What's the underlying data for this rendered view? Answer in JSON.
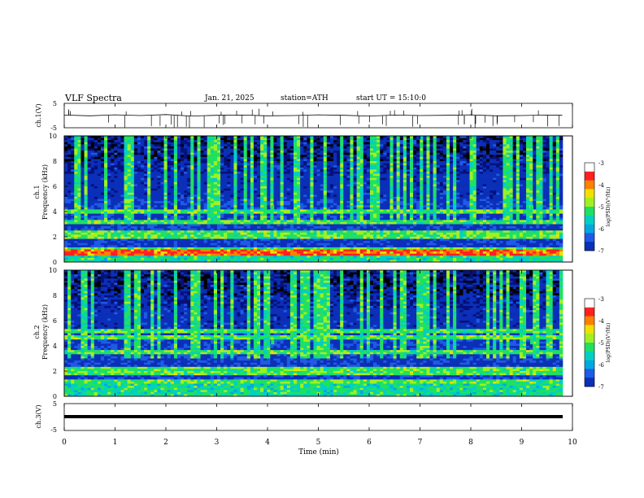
{
  "header": {
    "title": "VLF Spectra",
    "date": "Jan. 21, 2025",
    "station": "station=ATH",
    "start": "start UT = 15:10:0"
  },
  "chart_data": [
    {
      "type": "line",
      "panel": "ch1-waveform",
      "ylabel": "ch.1(V)",
      "ylim": [
        -5,
        5
      ],
      "yticks": [
        "5",
        "-5"
      ],
      "x": [
        0,
        0.5,
        1,
        1.5,
        2,
        2.5,
        3,
        3.5,
        4,
        4.5,
        5,
        5.5,
        6,
        6.5,
        7,
        7.5,
        8,
        8.5,
        9,
        9.5,
        9.8
      ],
      "y": [
        0.2,
        -0.1,
        0.3,
        0.0,
        0.4,
        -0.2,
        0.1,
        0.2,
        -0.1,
        0.0,
        0.3,
        0.1,
        -0.2,
        0.2,
        0.0,
        0.1,
        0.3,
        -0.1,
        0.0,
        0.2,
        0.1
      ],
      "color": "#000000"
    },
    {
      "type": "heatmap",
      "panel": "ch1-spectrogram",
      "ylabel": "ch.1 Frequency (kHz)",
      "ylim": [
        0,
        10
      ],
      "yticks": [
        "0",
        "2",
        "4",
        "6",
        "8",
        "10"
      ],
      "colorbar": {
        "label": "log(PSD)(V²/Hz)",
        "range": [
          -7,
          -3
        ],
        "ticks": [
          "-3",
          "-4",
          "-5",
          "-6",
          "-7"
        ]
      },
      "bright_bands_khz": [
        0.6,
        1.0,
        2.0,
        2.3,
        3.2,
        4.0
      ],
      "event_marks_min": [
        4.1,
        9.2
      ]
    },
    {
      "type": "heatmap",
      "panel": "ch2-spectrogram",
      "ylabel": "ch.2 Frequency (kHz)",
      "ylim": [
        0,
        10
      ],
      "yticks": [
        "0",
        "2",
        "4",
        "6",
        "8",
        "10"
      ],
      "colorbar": {
        "label": "log(PSD)(V²/Hz)",
        "range": [
          -7,
          -3
        ],
        "ticks": [
          "-3",
          "-4",
          "-5",
          "-6",
          "-7"
        ]
      },
      "bright_bands_khz": [
        1.2,
        1.9,
        2.1,
        3.5,
        4.6,
        5.2
      ],
      "event_marks_min": [
        4.1,
        9.2
      ]
    },
    {
      "type": "line",
      "panel": "ch3-waveform",
      "ylabel": "ch.3(V)",
      "ylim": [
        -5,
        5
      ],
      "yticks": [
        "5",
        "-5"
      ],
      "x": [
        0,
        9.8
      ],
      "y": [
        -1.5,
        -1.5
      ],
      "color": "#000000"
    }
  ],
  "xaxis": {
    "label": "Time (min)",
    "xlim": [
      0,
      10
    ],
    "ticks": [
      "0",
      "1",
      "2",
      "3",
      "4",
      "5",
      "6",
      "7",
      "8",
      "9",
      "10"
    ]
  },
  "colors": {
    "background": "#000000",
    "low": "#0a1a8c",
    "mid": "#00b4d8",
    "high": "#20e060",
    "peak": "#ff3030"
  }
}
